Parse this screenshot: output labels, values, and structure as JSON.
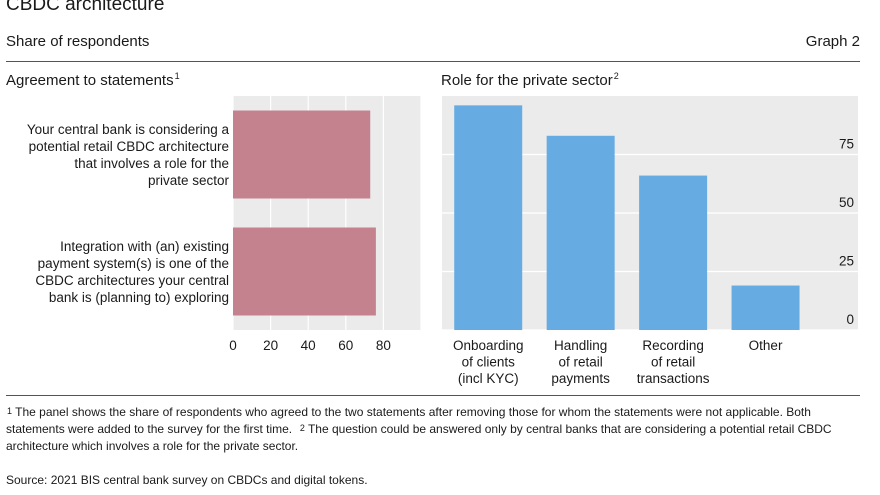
{
  "header": {
    "title": "CBDC architecture",
    "subtitle": "Share of respondents",
    "graph_number": "Graph 2"
  },
  "panels": {
    "left_title": "Agreement to statements",
    "left_note_mark": "1",
    "right_title": "Role for the private sector",
    "right_note_mark": "2"
  },
  "footnotes": {
    "note1_mark": "1",
    "note1": "The panel shows the share of respondents who agreed to the two statements after removing those for whom the statements were not applicable. Both statements were added to the survey for the first time.",
    "note2_mark": "2",
    "note2": "The question could be answered only by central banks that are considering a potential retail CBDC architecture which involves a role for the private sector."
  },
  "source": "Source: 2021 BIS central bank survey on CBDCs and digital tokens.",
  "colors": {
    "left_bars": "#c4828f",
    "right_bars": "#66ace3",
    "plot_bg": "#ebebeb",
    "grid": "#ffffff"
  },
  "chart_data": [
    {
      "type": "bar",
      "orientation": "horizontal",
      "categories": [
        [
          "Your central bank is considering a",
          "potential retail CBDC architecture",
          "that involves a role for the",
          "private sector"
        ],
        [
          "Integration with (an) existing",
          "payment system(s) is one of the",
          "CBDC architectures your central",
          "bank is (planning to) exploring"
        ]
      ],
      "values": [
        73,
        76
      ],
      "xlim": [
        0,
        100
      ],
      "xticks": [
        "0",
        "20",
        "40",
        "60",
        "80"
      ],
      "xtick_values": [
        0,
        20,
        40,
        60,
        80
      ],
      "grid": true
    },
    {
      "type": "bar",
      "orientation": "vertical",
      "categories": [
        [
          "Onboarding",
          "of clients",
          "(incl KYC)"
        ],
        [
          "Handling",
          "of retail",
          "payments"
        ],
        [
          "Recording",
          "of retail",
          "transactions"
        ],
        [
          "Other"
        ]
      ],
      "values": [
        96,
        83,
        66,
        19
      ],
      "ylim": [
        0,
        100
      ],
      "yticks": [
        "0",
        "25",
        "50",
        "75"
      ],
      "ytick_values": [
        0,
        25,
        50,
        75
      ],
      "yaxis_position": "right",
      "grid": true
    }
  ]
}
